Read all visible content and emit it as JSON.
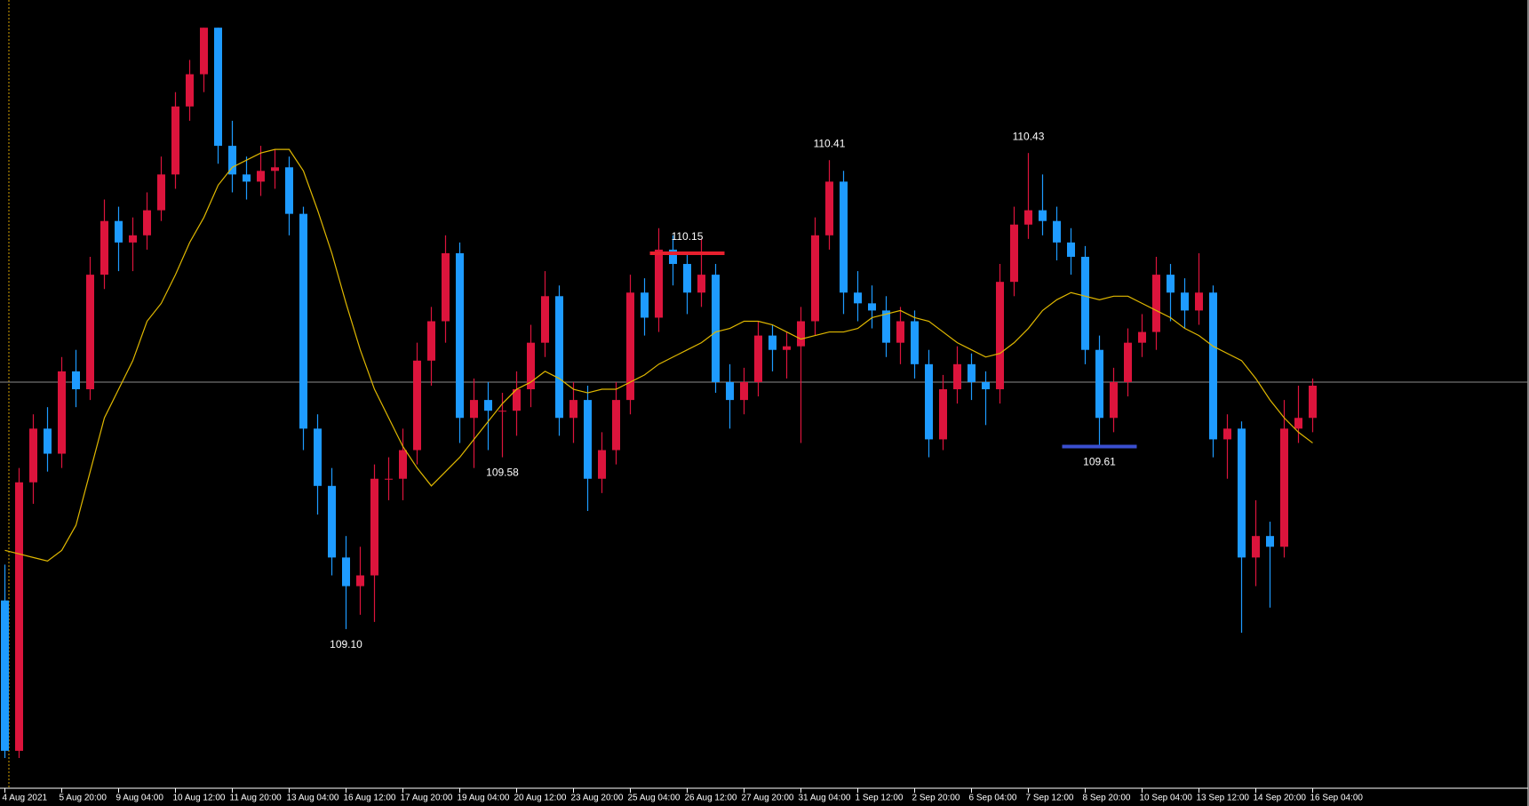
{
  "chart_data": {
    "type": "candlestick",
    "ylim": [
      108.72,
      110.84
    ],
    "up_color": "#dc143c",
    "down_color": "#1e9bff",
    "ma_color": "#e0b800",
    "price_line": 109.79,
    "price_line_color": "#8c8c8c",
    "x_labels": [
      "4 Aug 2021",
      "5 Aug 20:00",
      "9 Aug 04:00",
      "10 Aug 12:00",
      "11 Aug 20:00",
      "13 Aug 04:00",
      "16 Aug 12:00",
      "17 Aug 20:00",
      "19 Aug 04:00",
      "20 Aug 12:00",
      "23 Aug 20:00",
      "25 Aug 04:00",
      "26 Aug 12:00",
      "27 Aug 20:00",
      "31 Aug 04:00",
      "1 Sep 12:00",
      "2 Sep 20:00",
      "6 Sep 04:00",
      "7 Sep 12:00",
      "8 Sep 20:00",
      "10 Sep 04:00",
      "13 Sep 12:00",
      "14 Sep 20:00",
      "16 Sep 04:00"
    ],
    "candles": [
      [
        109.18,
        109.28,
        108.74,
        108.76
      ],
      [
        108.76,
        109.55,
        108.74,
        109.51
      ],
      [
        109.51,
        109.7,
        109.45,
        109.66
      ],
      [
        109.66,
        109.72,
        109.54,
        109.59
      ],
      [
        109.59,
        109.86,
        109.55,
        109.82
      ],
      [
        109.82,
        109.88,
        109.72,
        109.77
      ],
      [
        109.77,
        110.14,
        109.74,
        110.09
      ],
      [
        110.09,
        110.3,
        110.05,
        110.24
      ],
      [
        110.24,
        110.28,
        110.1,
        110.18
      ],
      [
        110.18,
        110.25,
        110.1,
        110.2
      ],
      [
        110.2,
        110.32,
        110.16,
        110.27
      ],
      [
        110.27,
        110.42,
        110.24,
        110.37
      ],
      [
        110.37,
        110.6,
        110.33,
        110.56
      ],
      [
        110.56,
        110.69,
        110.52,
        110.65
      ],
      [
        110.65,
        110.78,
        110.6,
        110.78
      ],
      [
        110.78,
        110.78,
        110.4,
        110.45
      ],
      [
        110.45,
        110.52,
        110.32,
        110.37
      ],
      [
        110.37,
        110.42,
        110.3,
        110.35
      ],
      [
        110.35,
        110.45,
        110.31,
        110.38
      ],
      [
        110.38,
        110.44,
        110.33,
        110.39
      ],
      [
        110.39,
        110.42,
        110.2,
        110.26
      ],
      [
        110.26,
        110.28,
        109.6,
        109.66
      ],
      [
        109.66,
        109.7,
        109.42,
        109.5
      ],
      [
        109.5,
        109.55,
        109.25,
        109.3
      ],
      [
        109.3,
        109.36,
        109.1,
        109.22
      ],
      [
        109.22,
        109.33,
        109.14,
        109.25
      ],
      [
        109.25,
        109.56,
        109.12,
        109.52
      ],
      [
        109.52,
        109.58,
        109.46,
        109.52
      ],
      [
        109.52,
        109.66,
        109.46,
        109.6
      ],
      [
        109.6,
        109.9,
        109.56,
        109.85
      ],
      [
        109.85,
        110.0,
        109.78,
        109.96
      ],
      [
        109.96,
        110.2,
        109.9,
        110.15
      ],
      [
        110.15,
        110.18,
        109.62,
        109.69
      ],
      [
        109.69,
        109.8,
        109.55,
        109.74
      ],
      [
        109.74,
        109.79,
        109.6,
        109.71
      ],
      [
        109.71,
        109.76,
        109.58,
        109.71
      ],
      [
        109.71,
        109.82,
        109.64,
        109.77
      ],
      [
        109.77,
        109.95,
        109.72,
        109.9
      ],
      [
        109.9,
        110.1,
        109.86,
        110.03
      ],
      [
        110.03,
        110.06,
        109.64,
        109.69
      ],
      [
        109.69,
        109.79,
        109.62,
        109.74
      ],
      [
        109.74,
        109.78,
        109.43,
        109.52
      ],
      [
        109.52,
        109.65,
        109.48,
        109.6
      ],
      [
        109.6,
        109.79,
        109.56,
        109.74
      ],
      [
        109.74,
        110.09,
        109.7,
        110.04
      ],
      [
        110.04,
        110.08,
        109.92,
        109.97
      ],
      [
        109.97,
        110.22,
        109.93,
        110.16
      ],
      [
        110.16,
        110.2,
        110.06,
        110.12
      ],
      [
        110.12,
        110.15,
        109.98,
        110.04
      ],
      [
        110.04,
        110.19,
        110.0,
        110.09
      ],
      [
        110.09,
        110.12,
        109.76,
        109.79
      ],
      [
        109.79,
        109.84,
        109.66,
        109.74
      ],
      [
        109.74,
        109.83,
        109.7,
        109.79
      ],
      [
        109.79,
        109.96,
        109.75,
        109.92
      ],
      [
        109.92,
        109.95,
        109.82,
        109.88
      ],
      [
        109.88,
        109.93,
        109.8,
        109.89
      ],
      [
        109.89,
        110.0,
        109.62,
        109.96
      ],
      [
        109.96,
        110.25,
        109.92,
        110.2
      ],
      [
        110.2,
        110.41,
        110.16,
        110.35
      ],
      [
        110.35,
        110.38,
        109.98,
        110.04
      ],
      [
        110.04,
        110.1,
        109.96,
        110.01
      ],
      [
        110.01,
        110.06,
        109.94,
        109.99
      ],
      [
        109.99,
        110.03,
        109.86,
        109.9
      ],
      [
        109.9,
        110.0,
        109.84,
        109.96
      ],
      [
        109.96,
        109.99,
        109.8,
        109.84
      ],
      [
        109.84,
        109.88,
        109.58,
        109.63
      ],
      [
        109.63,
        109.81,
        109.6,
        109.77
      ],
      [
        109.77,
        109.89,
        109.73,
        109.84
      ],
      [
        109.84,
        109.87,
        109.74,
        109.79
      ],
      [
        109.79,
        109.82,
        109.67,
        109.77
      ],
      [
        109.77,
        110.12,
        109.73,
        110.07
      ],
      [
        110.07,
        110.28,
        110.03,
        110.23
      ],
      [
        110.23,
        110.43,
        110.19,
        110.27
      ],
      [
        110.27,
        110.37,
        110.2,
        110.24
      ],
      [
        110.24,
        110.28,
        110.13,
        110.18
      ],
      [
        110.18,
        110.22,
        110.09,
        110.14
      ],
      [
        110.14,
        110.17,
        109.84,
        109.88
      ],
      [
        109.88,
        109.92,
        109.61,
        109.69
      ],
      [
        109.69,
        109.83,
        109.65,
        109.79
      ],
      [
        109.79,
        109.94,
        109.75,
        109.9
      ],
      [
        109.9,
        109.98,
        109.86,
        109.93
      ],
      [
        109.93,
        110.14,
        109.88,
        110.09
      ],
      [
        110.09,
        110.12,
        109.96,
        110.04
      ],
      [
        110.04,
        110.08,
        109.94,
        109.99
      ],
      [
        109.99,
        110.15,
        109.95,
        110.04
      ],
      [
        110.04,
        110.06,
        109.58,
        109.63
      ],
      [
        109.63,
        109.7,
        109.52,
        109.66
      ],
      [
        109.66,
        109.68,
        109.09,
        109.3
      ],
      [
        109.3,
        109.46,
        109.22,
        109.36
      ],
      [
        109.36,
        109.4,
        109.16,
        109.33
      ],
      [
        109.33,
        109.74,
        109.3,
        109.66
      ],
      [
        109.66,
        109.78,
        109.62,
        109.69
      ],
      [
        109.69,
        109.8,
        109.65,
        109.78
      ]
    ],
    "ma_values": [
      109.32,
      109.31,
      109.3,
      109.29,
      109.32,
      109.39,
      109.54,
      109.69,
      109.77,
      109.85,
      109.96,
      110.01,
      110.09,
      110.18,
      110.25,
      110.34,
      110.39,
      110.41,
      110.43,
      110.44,
      110.44,
      110.38,
      110.27,
      110.15,
      110.01,
      109.88,
      109.77,
      109.69,
      109.61,
      109.55,
      109.5,
      109.54,
      109.58,
      109.63,
      109.68,
      109.73,
      109.77,
      109.79,
      109.82,
      109.8,
      109.77,
      109.76,
      109.77,
      109.77,
      109.79,
      109.81,
      109.84,
      109.86,
      109.88,
      109.9,
      109.93,
      109.94,
      109.96,
      109.96,
      109.95,
      109.93,
      109.91,
      109.92,
      109.93,
      109.93,
      109.94,
      109.97,
      109.98,
      109.99,
      109.97,
      109.96,
      109.93,
      109.9,
      109.88,
      109.86,
      109.87,
      109.9,
      109.94,
      109.99,
      110.02,
      110.04,
      110.03,
      110.02,
      110.03,
      110.03,
      110.01,
      109.99,
      109.97,
      109.94,
      109.92,
      109.89,
      109.87,
      109.85,
      109.8,
      109.74,
      109.69,
      109.65,
      109.62
    ],
    "high_labels": [
      {
        "value": 110.41,
        "label": "110.41"
      },
      {
        "value": 110.43,
        "label": "110.43"
      },
      {
        "value": 110.15,
        "label": "110.15",
        "line_color": "#e8202e"
      }
    ],
    "low_labels": [
      {
        "value": 109.1,
        "label": "109.10"
      },
      {
        "value": 109.58,
        "label": "109.58"
      },
      {
        "value": 109.61,
        "label": "109.61",
        "line_color": "#3a4fd0"
      }
    ]
  }
}
